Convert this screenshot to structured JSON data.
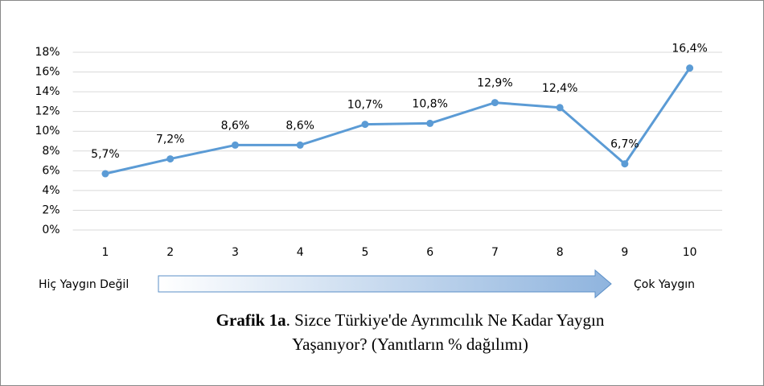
{
  "chart_data": {
    "type": "line",
    "categories": [
      "1",
      "2",
      "3",
      "4",
      "5",
      "6",
      "7",
      "8",
      "9",
      "10"
    ],
    "values": [
      5.7,
      7.2,
      8.6,
      8.6,
      10.7,
      10.8,
      12.9,
      12.4,
      6.7,
      16.4
    ],
    "value_labels": [
      "5,7%",
      "7,2%",
      "8,6%",
      "8,6%",
      "10,7%",
      "10,8%",
      "12,9%",
      "12,4%",
      "6,7%",
      "16,4%"
    ],
    "color": "#5b9bd5",
    "ylim": [
      0,
      18
    ],
    "yticks": [
      {
        "value": 0,
        "label": "0%"
      },
      {
        "value": 2,
        "label": "2%"
      },
      {
        "value": 4,
        "label": "4%"
      },
      {
        "value": 6,
        "label": "6%"
      },
      {
        "value": 8,
        "label": "8%"
      },
      {
        "value": 10,
        "label": "10%"
      },
      {
        "value": 12,
        "label": "12%"
      },
      {
        "value": 14,
        "label": "14%"
      },
      {
        "value": 16,
        "label": "16%"
      },
      {
        "value": 18,
        "label": "18%"
      }
    ],
    "grid": true,
    "annotations": [
      "Hiç Yaygın Değil",
      "Çok Yaygın"
    ],
    "caption": {
      "label": "Grafik 1a",
      "lines": [
        ". Sizce Türkiye'de Ayrımcılık Ne Kadar Yaygın",
        "Yaşanıyor? (Yanıtların % dağılımı)"
      ]
    }
  }
}
